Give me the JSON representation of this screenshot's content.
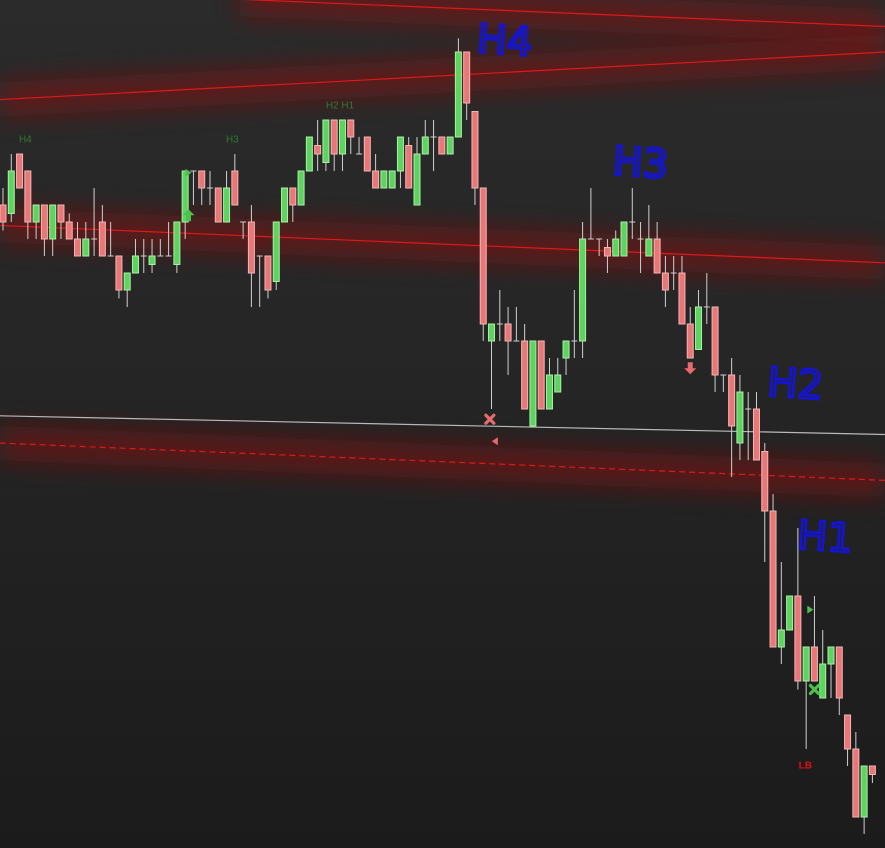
{
  "chart_data": {
    "type": "candlestick",
    "title": "",
    "xlabel": "",
    "ylabel": "",
    "grid": false,
    "colors": {
      "up": "#5fd35f",
      "down": "#e87878",
      "up_border": "#a8f0a8",
      "down_border": "#f4b4b4",
      "wick": "#d0d0d0",
      "trendline": "#e01818",
      "level": "#b8b8b8",
      "annotation": "#1414d8",
      "label_green": "#2f7a2f",
      "label_red": "#e01010"
    },
    "candles": [
      [
        95,
        96,
        93.5,
        94
      ],
      [
        94.5,
        98,
        94,
        97
      ],
      [
        98,
        98,
        96,
        96
      ],
      [
        97,
        97,
        93,
        94
      ],
      [
        94,
        95,
        93,
        95
      ],
      [
        95,
        95,
        92,
        93
      ],
      [
        93,
        95,
        92,
        95
      ],
      [
        95,
        95,
        93,
        94
      ],
      [
        94,
        94.5,
        93,
        93
      ],
      [
        93,
        94,
        92,
        92
      ],
      [
        92,
        94,
        92,
        93
      ],
      [
        93,
        96,
        92,
        93
      ],
      [
        94,
        95,
        92,
        92
      ],
      [
        92,
        94,
        92,
        92
      ],
      [
        92,
        92,
        89.5,
        90
      ],
      [
        90,
        91,
        89,
        91
      ],
      [
        91,
        93,
        91,
        92
      ],
      [
        92,
        93,
        91,
        92
      ],
      [
        91.5,
        93,
        91,
        92
      ],
      [
        92,
        93,
        92,
        92
      ],
      [
        92,
        94,
        92,
        92
      ],
      [
        91.5,
        94,
        91,
        94
      ],
      [
        94,
        97,
        93,
        97
      ],
      [
        97,
        97,
        95,
        97
      ],
      [
        97,
        97,
        95,
        96
      ],
      [
        96,
        97,
        95,
        96
      ],
      [
        96,
        96,
        94,
        94
      ],
      [
        94,
        97,
        94,
        96
      ],
      [
        97,
        98,
        95,
        95
      ],
      [
        94,
        94,
        93,
        94
      ],
      [
        94,
        95,
        89,
        91
      ],
      [
        92,
        92,
        89,
        92
      ],
      [
        92,
        92,
        89.5,
        90
      ],
      [
        90.5,
        94,
        90,
        94
      ],
      [
        94,
        96,
        94,
        96
      ],
      [
        96,
        96,
        94,
        95
      ],
      [
        95,
        97,
        95,
        97
      ],
      [
        97,
        99,
        97,
        99
      ],
      [
        98.5,
        100,
        97,
        98
      ],
      [
        97.5,
        100,
        97,
        100
      ],
      [
        100,
        100,
        97,
        98
      ],
      [
        98,
        100,
        97,
        100
      ],
      [
        100,
        100,
        98,
        99
      ],
      [
        98,
        99,
        98,
        98
      ],
      [
        99,
        99,
        97,
        97
      ],
      [
        97,
        98,
        96,
        96
      ],
      [
        96,
        97,
        96,
        97
      ],
      [
        96,
        97,
        96,
        97
      ],
      [
        97,
        99,
        96,
        99
      ],
      [
        98.5,
        99,
        96,
        96
      ],
      [
        95,
        99,
        95,
        98
      ],
      [
        98,
        100,
        98,
        99
      ],
      [
        99,
        100,
        97,
        99
      ],
      [
        99,
        99,
        98,
        98
      ],
      [
        98,
        99,
        98,
        99
      ],
      [
        99,
        104.8,
        99,
        104
      ],
      [
        104,
        104,
        100,
        101
      ],
      [
        100.5,
        100.5,
        95,
        96
      ],
      [
        96,
        96,
        87,
        88
      ],
      [
        87,
        88,
        83,
        88
      ],
      [
        88,
        90,
        87,
        88
      ],
      [
        88,
        89,
        85,
        87
      ],
      [
        87,
        89,
        87,
        87
      ],
      [
        87,
        88,
        83,
        83
      ],
      [
        82,
        87,
        82,
        87
      ],
      [
        87,
        87,
        83,
        83
      ],
      [
        83,
        86,
        83,
        85
      ],
      [
        84,
        86,
        84,
        85
      ],
      [
        86,
        87,
        85,
        87
      ],
      [
        87,
        90,
        86,
        87
      ],
      [
        87,
        94,
        86,
        93
      ],
      [
        93,
        96,
        93,
        93
      ],
      [
        93,
        93,
        92,
        93
      ],
      [
        92.5,
        93,
        91,
        92
      ],
      [
        92,
        93.5,
        92,
        93
      ],
      [
        92,
        94,
        92,
        94
      ],
      [
        94,
        96,
        93,
        94
      ],
      [
        93,
        94,
        91,
        93
      ],
      [
        92,
        95,
        92,
        93
      ],
      [
        93,
        94,
        91,
        91
      ],
      [
        91,
        92,
        89,
        90
      ],
      [
        91,
        92,
        90,
        91
      ],
      [
        91,
        92,
        88,
        88
      ],
      [
        88,
        89,
        86,
        86
      ],
      [
        86.5,
        90,
        86.5,
        89
      ],
      [
        89,
        91,
        88,
        89
      ],
      [
        89,
        89,
        84,
        85
      ],
      [
        85,
        85,
        84,
        85
      ],
      [
        85,
        86,
        79,
        82
      ],
      [
        81,
        85,
        80,
        84
      ],
      [
        83,
        84,
        80,
        83
      ],
      [
        83,
        84,
        80,
        80
      ],
      [
        80.5,
        81,
        74,
        77
      ],
      [
        77,
        78,
        69,
        69
      ],
      [
        69,
        74,
        68,
        70
      ],
      [
        70,
        72,
        70,
        72
      ],
      [
        72,
        76,
        66.5,
        67
      ],
      [
        67,
        69,
        63,
        69
      ],
      [
        69,
        72,
        67,
        67
      ],
      [
        66,
        70,
        66,
        68
      ],
      [
        68,
        69,
        66,
        69
      ],
      [
        69,
        69,
        65,
        66
      ],
      [
        65,
        65,
        62,
        63
      ],
      [
        63,
        64,
        59,
        59
      ],
      [
        59,
        62,
        58,
        62
      ],
      [
        62,
        62,
        61,
        61.5
      ]
    ],
    "trendlines": [
      {
        "style": "solid",
        "color": "#e01818",
        "from": [
          28.6,
          107.1
        ],
        "to": [
          106.5,
          105.5
        ]
      },
      {
        "style": "solid",
        "color": "#e01818",
        "from": [
          -0.4,
          101.2
        ],
        "to": [
          106.5,
          104.0
        ]
      },
      {
        "style": "solid",
        "color": "#e01818",
        "from": [
          -0.4,
          93.8
        ],
        "to": [
          106.5,
          91.6
        ]
      },
      {
        "style": "solid",
        "color": "#b8b8b8",
        "from": [
          -0.4,
          82.6
        ],
        "to": [
          106.5,
          81.5
        ]
      },
      {
        "style": "dashed",
        "color": "#e01818",
        "from": [
          -0.4,
          81.0
        ],
        "to": [
          106.5,
          78.8
        ]
      }
    ],
    "markers": [
      {
        "type": "arrow-up",
        "color": "#4cc24c",
        "at": [
          22.4,
          94.4
        ]
      },
      {
        "type": "triangle-right",
        "color": "#4cc24c",
        "at": [
          22.4,
          96.9
        ]
      },
      {
        "type": "x",
        "color": "#e86a6a",
        "at": [
          58.8,
          82.4
        ]
      },
      {
        "type": "triangle-left",
        "color": "#e86a6a",
        "at": [
          59.4,
          81.1
        ]
      },
      {
        "type": "arrow-down",
        "color": "#e86a6a",
        "at": [
          83,
          85.4
        ]
      },
      {
        "type": "triangle-right",
        "color": "#4cc24c",
        "at": [
          97.5,
          71.2
        ]
      },
      {
        "type": "x",
        "color": "#4cc24c",
        "at": [
          98,
          66.5
        ]
      }
    ],
    "labels": [
      {
        "text": "H4",
        "color": "#2f7a2f",
        "at": [
          2.7,
          98.9
        ]
      },
      {
        "text": "H3",
        "color": "#2f7a2f",
        "at": [
          27.7,
          98.9
        ]
      },
      {
        "text": "H2 H1",
        "color": "#2f7a2f",
        "at": [
          40.7,
          100.9
        ]
      },
      {
        "text": "LB",
        "color": "#e01010",
        "at": [
          96.9,
          62.1
        ]
      }
    ],
    "annotations": [
      {
        "text": "H4",
        "at": [
          60.6,
          104.7
        ]
      },
      {
        "text": "H3",
        "at": [
          77,
          97.5
        ]
      },
      {
        "text": "H2",
        "at": [
          95.7,
          84.5
        ]
      },
      {
        "text": "H1",
        "at": [
          99.3,
          75.5
        ]
      }
    ]
  }
}
